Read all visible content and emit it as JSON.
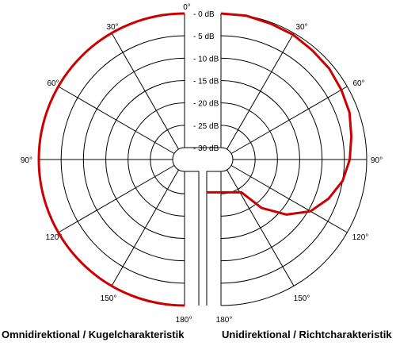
{
  "chart_data": {
    "type": "polar",
    "angle_unit": "degrees",
    "angle_ticks": [
      {
        "angle": 0,
        "label": "0°"
      },
      {
        "angle": 30,
        "label": "30°"
      },
      {
        "angle": 60,
        "label": "60°"
      },
      {
        "angle": 90,
        "label": "90°"
      },
      {
        "angle": 120,
        "label": "120°"
      },
      {
        "angle": 150,
        "label": "150°"
      },
      {
        "angle": 180,
        "label": "180°"
      }
    ],
    "radial_ticks": [
      {
        "db": 0,
        "label": "- 0 dB"
      },
      {
        "db": -5,
        "label": "- 5 dB"
      },
      {
        "db": -10,
        "label": "- 10 dB"
      },
      {
        "db": -15,
        "label": "- 15 dB"
      },
      {
        "db": -20,
        "label": "- 20 dB"
      },
      {
        "db": -25,
        "label": "- 25 dB"
      },
      {
        "db": -30,
        "label": "- 30 dB"
      }
    ],
    "rlim_db": [
      -30,
      0
    ],
    "line_color": "#cc0000",
    "panels": [
      {
        "caption": "Omnidirektional / Kugelcharakteristik",
        "side": "left",
        "points": [
          [
            0,
            0
          ],
          [
            30,
            0
          ],
          [
            60,
            0
          ],
          [
            90,
            0
          ],
          [
            120,
            0
          ],
          [
            150,
            0
          ],
          [
            180,
            0
          ]
        ]
      },
      {
        "caption": "Unidirektional / Richtcharakteristik",
        "side": "right",
        "points": [
          [
            0,
            0
          ],
          [
            10,
            0
          ],
          [
            20,
            -0.3
          ],
          [
            30,
            -0.4
          ],
          [
            40,
            -0.8
          ],
          [
            50,
            -1
          ],
          [
            60,
            -1.5
          ],
          [
            70,
            -2
          ],
          [
            80,
            -3
          ],
          [
            90,
            -3.8
          ],
          [
            100,
            -5
          ],
          [
            110,
            -7
          ],
          [
            120,
            -9.5
          ],
          [
            130,
            -13.5
          ],
          [
            140,
            -18.5
          ],
          [
            148,
            -24
          ]
        ]
      }
    ]
  }
}
